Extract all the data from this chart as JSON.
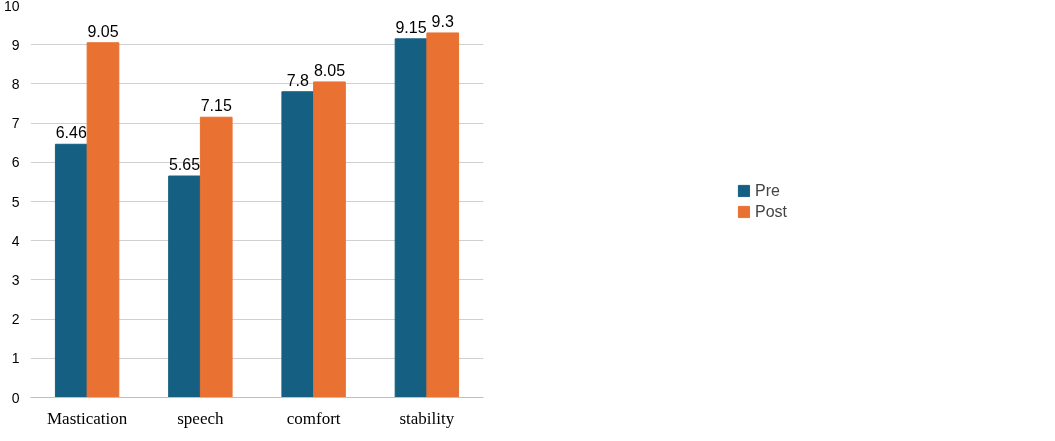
{
  "chart_data": {
    "type": "bar",
    "categories": [
      "Mastication",
      "speech",
      "comfort",
      "stability"
    ],
    "series": [
      {
        "name": "Pre",
        "color": "#156082",
        "values": [
          6.46,
          5.65,
          7.8,
          9.15
        ]
      },
      {
        "name": "Post",
        "color": "#e97132",
        "values": [
          9.05,
          7.15,
          8.05,
          9.3
        ]
      }
    ],
    "ylim": [
      0,
      10
    ],
    "yticks": [
      0,
      1,
      2,
      3,
      4,
      5,
      6,
      7,
      8,
      9,
      10
    ],
    "grid": "y",
    "legend": "right",
    "data_labels": true
  }
}
